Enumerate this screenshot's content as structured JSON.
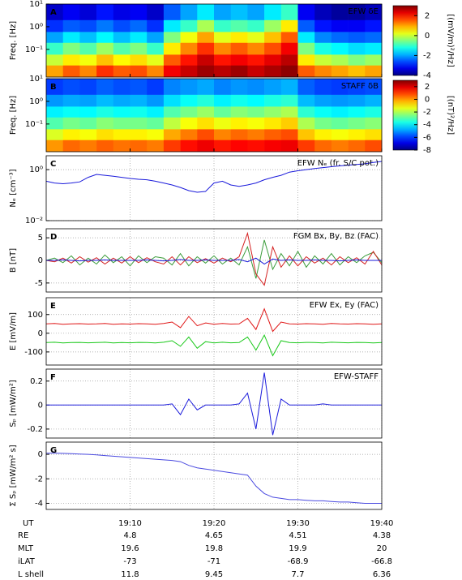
{
  "chart_data": [
    {
      "type": "heatmap",
      "label": "A",
      "annotation": "EFW δE",
      "ylabel": "Freq. [Hz]",
      "ylog": true,
      "colormap": "jet",
      "xlim": [
        0,
        40
      ],
      "xticks": [
        10,
        20,
        30,
        40
      ],
      "ylim": [
        0.006,
        10
      ],
      "yticks": [
        {
          "value": 10,
          "label": "10¹"
        },
        {
          "value": 1,
          "label": "10⁰"
        },
        {
          "value": 0.1,
          "label": "10⁻¹"
        }
      ],
      "xbins": [
        0,
        2,
        4,
        6,
        8,
        10,
        12,
        14,
        16,
        18,
        20,
        22,
        24,
        26,
        28,
        30,
        32,
        34,
        36,
        38,
        40
      ],
      "ybins": [
        0.006,
        0.02,
        0.06,
        0.2,
        0.6,
        2,
        10
      ],
      "z": [
        [
          1,
          1.5,
          1.2,
          1.8,
          1.5,
          1.6,
          1.2,
          2.2,
          2.5,
          2.8,
          2.6,
          2.8,
          2.5,
          2.7,
          2.9,
          1.5,
          1.2,
          1.0,
          0.8,
          1.0
        ],
        [
          0,
          0.5,
          0.3,
          0.8,
          0.4,
          0.6,
          0.2,
          1.5,
          2,
          2.5,
          2,
          2.2,
          2,
          2.3,
          2.6,
          0.5,
          0,
          -0.2,
          -0.5,
          -0.3
        ],
        [
          -1,
          -0.5,
          -0.8,
          -0.3,
          -0.8,
          -0.5,
          -1,
          0.5,
          1.2,
          1.8,
          1.2,
          1.5,
          1.2,
          1.6,
          2.2,
          -0.5,
          -1.2,
          -1.4,
          -1.6,
          -1.5
        ],
        [
          -2,
          -1.5,
          -1.8,
          -1.4,
          -1.8,
          -1.5,
          -2,
          -0.5,
          0.3,
          1,
          0.2,
          0.5,
          0.2,
          0.8,
          1.5,
          -1.5,
          -2.2,
          -2.4,
          -2.5,
          -2.4
        ],
        [
          -2.8,
          -2.5,
          -2.6,
          -2.3,
          -2.6,
          -2.4,
          -2.8,
          -1.5,
          -1,
          -0.2,
          -1,
          -0.8,
          -1,
          -0.3,
          0.5,
          -2.5,
          -3,
          -3.2,
          -3.2,
          -3
        ],
        [
          -3.5,
          -3.2,
          -3.4,
          -3,
          -3.3,
          -3.2,
          -3.5,
          -2.5,
          -2,
          -1.5,
          -2,
          -1.8,
          -2,
          -1.5,
          -1,
          -3.2,
          -3.6,
          -3.8,
          -3.8,
          -3.6
        ]
      ],
      "colorbar": {
        "lim": [
          -4,
          3
        ],
        "ticks": [
          2,
          0,
          -2,
          -4
        ],
        "label": "[(mV/m)²/Hz]"
      }
    },
    {
      "type": "heatmap",
      "label": "B",
      "annotation": "STAFF δB",
      "ylabel": "Freq. [Hz]",
      "ylog": true,
      "colormap": "jet",
      "xlim": [
        0,
        40
      ],
      "xticks": [
        10,
        20,
        30,
        40
      ],
      "ylim": [
        0.006,
        10
      ],
      "yticks": [
        {
          "value": 10,
          "label": "10¹"
        },
        {
          "value": 1,
          "label": "10⁰"
        },
        {
          "value": 0.1,
          "label": "10⁻¹"
        }
      ],
      "xbins": [
        0,
        2,
        4,
        6,
        8,
        10,
        12,
        14,
        16,
        18,
        20,
        22,
        24,
        26,
        28,
        30,
        32,
        34,
        36,
        38,
        40
      ],
      "ybins": [
        0.006,
        0.02,
        0.06,
        0.2,
        0.6,
        2,
        10
      ],
      "z": [
        [
          0,
          0.5,
          0.3,
          0.6,
          0.4,
          0.5,
          0.3,
          1,
          1.5,
          1.8,
          1.4,
          1.6,
          1.5,
          1.7,
          1.8,
          1,
          0.5,
          0.3,
          0.5,
          0.8
        ],
        [
          -1.5,
          -1,
          -1.2,
          -0.8,
          -1,
          -1,
          -1.2,
          -0.2,
          0.3,
          0.8,
          0.2,
          0.5,
          0.3,
          0.6,
          0.8,
          -0.5,
          -1,
          -1.2,
          -1,
          -0.8
        ],
        [
          -3,
          -2.6,
          -2.8,
          -2.4,
          -2.6,
          -2.6,
          -2.8,
          -1.8,
          -1.2,
          -0.8,
          -1.3,
          -1,
          -1.2,
          -0.9,
          -0.6,
          -2,
          -2.6,
          -2.8,
          -2.6,
          -2.4
        ],
        [
          -4,
          -3.8,
          -3.9,
          -3.6,
          -3.8,
          -3.7,
          -4,
          -3,
          -2.6,
          -2.2,
          -2.8,
          -2.4,
          -2.6,
          -2.3,
          -2,
          -3.4,
          -3.8,
          -4,
          -3.8,
          -3.6
        ],
        [
          -5,
          -4.8,
          -4.9,
          -4.6,
          -4.8,
          -4.7,
          -5,
          -4.2,
          -3.8,
          -3.5,
          -4,
          -3.7,
          -3.9,
          -3.6,
          -3.4,
          -4.6,
          -4.9,
          -5,
          -4.9,
          -4.7
        ],
        [
          -6,
          -5.8,
          -5.9,
          -5.6,
          -5.8,
          -5.7,
          -6,
          -5.2,
          -5,
          -4.8,
          -5.2,
          -5,
          -5.1,
          -4.9,
          -4.7,
          -5.6,
          -5.9,
          -6,
          -5.9,
          -5.8
        ]
      ],
      "colorbar": {
        "lim": [
          -8,
          3
        ],
        "ticks": [
          2,
          0,
          -2,
          -4,
          -6,
          -8
        ],
        "label": "[(nT)²/Hz]"
      }
    },
    {
      "type": "line",
      "label": "C",
      "annotation": "EFW Nₑ (fr. S/C pot.)",
      "ylabel": "Nₑ [cm⁻³]",
      "ylog": true,
      "grid": true,
      "xlim": [
        0,
        40
      ],
      "xticks": [
        10,
        20,
        30,
        40
      ],
      "ylim": [
        0.01,
        3.5
      ],
      "yticks": [
        {
          "value": 1,
          "label": "10⁰"
        },
        {
          "value": 0.01,
          "label": "10⁻²"
        }
      ],
      "x": [
        0,
        1,
        2,
        3,
        4,
        5,
        6,
        7,
        8,
        9,
        10,
        11,
        12,
        13,
        14,
        15,
        16,
        17,
        18,
        19,
        20,
        21,
        22,
        23,
        24,
        25,
        26,
        27,
        28,
        29,
        30,
        31,
        32,
        33,
        34,
        35,
        36,
        37,
        38,
        39,
        40
      ],
      "series": [
        {
          "color": "#1a1adb",
          "values": [
            0.35,
            0.3,
            0.28,
            0.3,
            0.33,
            0.5,
            0.65,
            0.6,
            0.55,
            0.5,
            0.45,
            0.42,
            0.4,
            0.35,
            0.3,
            0.25,
            0.2,
            0.15,
            0.13,
            0.14,
            0.3,
            0.35,
            0.25,
            0.22,
            0.25,
            0.3,
            0.4,
            0.5,
            0.6,
            0.8,
            0.9,
            1.0,
            1.1,
            1.2,
            1.3,
            1.4,
            1.5,
            1.6,
            1.7,
            1.9,
            2.1
          ]
        }
      ]
    },
    {
      "type": "line",
      "label": "D",
      "annotation": "FGM Bx, By, Bz (FAC)",
      "ylabel": "B [nT]",
      "grid": true,
      "xlim": [
        0,
        40
      ],
      "xticks": [
        10,
        20,
        30,
        40
      ],
      "ylim": [
        -7,
        7
      ],
      "yticks": [
        5,
        0,
        -5
      ],
      "x": [
        0,
        1,
        2,
        3,
        4,
        5,
        6,
        7,
        8,
        9,
        10,
        11,
        12,
        13,
        14,
        15,
        16,
        17,
        18,
        19,
        20,
        21,
        22,
        23,
        24,
        25,
        26,
        27,
        28,
        29,
        30,
        31,
        32,
        33,
        34,
        35,
        36,
        37,
        38,
        39,
        40
      ],
      "series": [
        {
          "color": "#3a9c3a",
          "values": [
            0,
            0.5,
            -0.5,
            1,
            -1,
            0.5,
            -0.8,
            1.2,
            -0.5,
            0.8,
            -1.2,
            1,
            -0.5,
            0.8,
            0.5,
            -1,
            1.5,
            -1.2,
            0.8,
            -0.6,
            1,
            -0.8,
            0.5,
            -1,
            3,
            -4,
            4.5,
            -2,
            1.5,
            -1.2,
            2,
            -1.5,
            1,
            -0.8,
            1.5,
            -1,
            0.8,
            -0.5,
            1,
            1.8,
            -0.5
          ]
        },
        {
          "color": "#d42020",
          "values": [
            0,
            -0.3,
            0.5,
            -0.6,
            0.8,
            -0.4,
            0.6,
            -0.8,
            0.5,
            -0.6,
            0.8,
            -0.5,
            0.6,
            -0.3,
            -0.8,
            0.8,
            -1,
            0.8,
            -0.5,
            0.4,
            -0.6,
            0.5,
            -0.3,
            0.8,
            6,
            -3,
            -5.5,
            3,
            -1.5,
            1,
            -1.2,
            0.8,
            -0.6,
            0.5,
            -1,
            0.8,
            -0.5,
            0.6,
            -0.8,
            2,
            -1
          ]
        },
        {
          "color": "#1a1adb",
          "values": [
            0,
            0,
            0.1,
            0,
            -0.1,
            0,
            0,
            0.1,
            0,
            0,
            0,
            0,
            0.1,
            0,
            -0.1,
            0,
            0.2,
            0,
            0,
            0.1,
            0,
            0,
            0,
            0.2,
            -0.3,
            0.5,
            -0.8,
            0.3,
            0,
            0.1,
            0,
            0,
            0.1,
            0,
            0,
            -0.1,
            0,
            0.1,
            0,
            0,
            0
          ]
        }
      ]
    },
    {
      "type": "line",
      "label": "E",
      "annotation": "EFW Ex, Ey (FAC)",
      "ylabel": "E [mV/m]",
      "grid": true,
      "xlim": [
        0,
        40
      ],
      "xticks": [
        10,
        20,
        30,
        40
      ],
      "ylim": [
        -170,
        190
      ],
      "yticks": [
        100,
        0,
        -100
      ],
      "x": [
        0,
        1,
        2,
        3,
        4,
        5,
        6,
        7,
        8,
        9,
        10,
        11,
        12,
        13,
        14,
        15,
        16,
        17,
        18,
        19,
        20,
        21,
        22,
        23,
        24,
        25,
        26,
        27,
        28,
        29,
        30,
        31,
        32,
        33,
        34,
        35,
        36,
        37,
        38,
        39,
        40
      ],
      "series": [
        {
          "color": "#e01818",
          "values": [
            50,
            52,
            48,
            50,
            51,
            49,
            50,
            52,
            48,
            50,
            49,
            51,
            50,
            48,
            52,
            60,
            30,
            90,
            40,
            55,
            48,
            52,
            49,
            50,
            80,
            20,
            130,
            10,
            60,
            50,
            49,
            51,
            50,
            48,
            52,
            50,
            49,
            51,
            50,
            48,
            50
          ]
        },
        {
          "color": "#18c818",
          "values": [
            -50,
            -48,
            -52,
            -50,
            -49,
            -51,
            -50,
            -48,
            -52,
            -50,
            -51,
            -49,
            -50,
            -52,
            -48,
            -40,
            -70,
            -20,
            -80,
            -45,
            -52,
            -48,
            -51,
            -50,
            -20,
            -90,
            -10,
            -120,
            -40,
            -50,
            -51,
            -49,
            -50,
            -52,
            -48,
            -50,
            -51,
            -49,
            -50,
            -52,
            -50
          ]
        }
      ]
    },
    {
      "type": "line",
      "label": "F",
      "annotation": "EFW-STAFF",
      "ylabel": "Sₚ [mW/m²]",
      "grid": true,
      "xlim": [
        0,
        40
      ],
      "xticks": [
        10,
        20,
        30,
        40
      ],
      "ylim": [
        -0.275,
        0.3
      ],
      "yticks": [
        0.2,
        0,
        -0.2
      ],
      "x": [
        0,
        1,
        2,
        3,
        4,
        5,
        6,
        7,
        8,
        9,
        10,
        11,
        12,
        13,
        14,
        15,
        16,
        17,
        18,
        19,
        20,
        21,
        22,
        23,
        24,
        25,
        26,
        27,
        28,
        29,
        30,
        31,
        32,
        33,
        34,
        35,
        36,
        37,
        38,
        39,
        40
      ],
      "series": [
        {
          "color": "#1a1adb",
          "values": [
            0,
            0,
            0,
            0,
            0,
            0,
            0,
            0,
            0,
            0,
            0,
            0,
            0,
            0,
            0,
            0.01,
            -0.08,
            0.05,
            -0.04,
            0,
            0,
            0,
            0,
            0.01,
            0.1,
            -0.2,
            0.27,
            -0.25,
            0.05,
            0,
            0,
            0,
            0,
            0.01,
            0,
            0,
            0,
            0,
            0,
            0,
            0
          ]
        }
      ]
    },
    {
      "type": "line",
      "label": "G",
      "ylabel": "Σ Sₚ [mW/m² s]",
      "grid": true,
      "xlim": [
        0,
        40
      ],
      "xticks": [
        10,
        20,
        30,
        40
      ],
      "ylim": [
        -4.5,
        1
      ],
      "yticks": [
        0,
        -2,
        -4
      ],
      "x": [
        0,
        1,
        2,
        3,
        4,
        5,
        6,
        7,
        8,
        9,
        10,
        11,
        12,
        13,
        14,
        15,
        16,
        17,
        18,
        19,
        20,
        21,
        22,
        23,
        24,
        25,
        26,
        27,
        28,
        29,
        30,
        31,
        32,
        33,
        34,
        35,
        36,
        37,
        38,
        39,
        40
      ],
      "series": [
        {
          "color": "#4a4ae0",
          "values": [
            0.1,
            0.1,
            0.08,
            0.05,
            0.02,
            0,
            -0.05,
            -0.1,
            -0.15,
            -0.2,
            -0.25,
            -0.3,
            -0.35,
            -0.4,
            -0.45,
            -0.5,
            -0.6,
            -0.9,
            -1.1,
            -1.2,
            -1.3,
            -1.4,
            -1.5,
            -1.6,
            -1.7,
            -2.6,
            -3.2,
            -3.5,
            -3.6,
            -3.7,
            -3.7,
            -3.75,
            -3.8,
            -3.8,
            -3.85,
            -3.9,
            -3.9,
            -3.95,
            -4,
            -4,
            -4
          ]
        }
      ]
    }
  ],
  "ephemeris": {
    "ut_label": "UT",
    "ut": [
      "19:10",
      "19:20",
      "19:30",
      "19:40"
    ],
    "rows": [
      {
        "label": "RE",
        "values": [
          4.8,
          4.65,
          4.51,
          4.38
        ]
      },
      {
        "label": "MLT",
        "values": [
          19.6,
          19.8,
          19.9,
          20
        ]
      },
      {
        "label": "iLAT",
        "values": [
          -73,
          -71,
          -68.9,
          -66.8
        ]
      },
      {
        "label": "L shell",
        "values": [
          11.8,
          9.45,
          7.7,
          6.36
        ]
      }
    ]
  }
}
